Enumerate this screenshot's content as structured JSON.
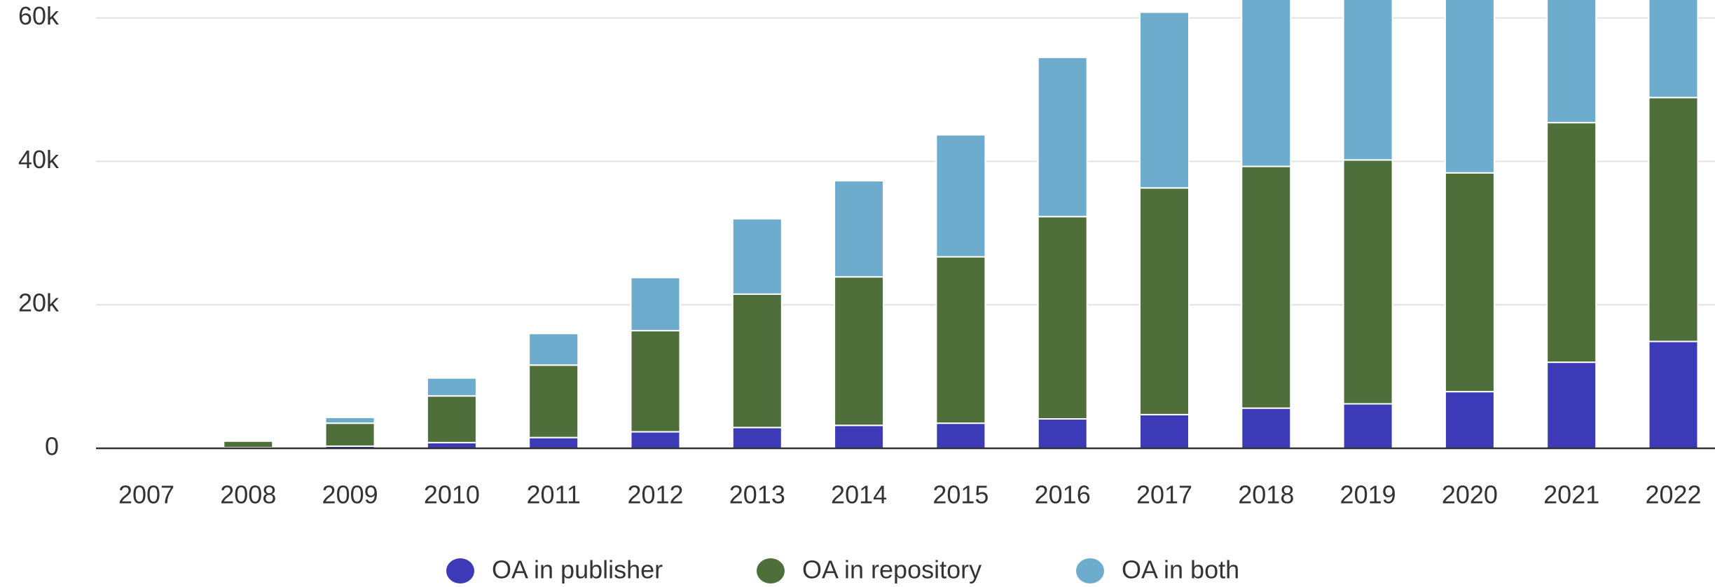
{
  "chart_data": {
    "type": "stacked_bar",
    "categories": [
      "2007",
      "2008",
      "2009",
      "2010",
      "2011",
      "2012",
      "2013",
      "2014",
      "2015",
      "2016",
      "2017",
      "2018",
      "2019",
      "2020",
      "2021",
      "2022"
    ],
    "series": [
      {
        "name": "OA in publisher",
        "color": "#3d3ab8",
        "values": [
          0,
          100,
          300,
          800,
          1500,
          2300,
          2900,
          3200,
          3500,
          4100,
          4700,
          5600,
          6200,
          7900,
          12000,
          14900
        ]
      },
      {
        "name": "OA in repository",
        "color": "#4e6e3a",
        "values": [
          0,
          900,
          3200,
          6500,
          10100,
          14100,
          18600,
          20700,
          23200,
          28200,
          31600,
          33700,
          34000,
          30500,
          33400,
          34000
        ]
      },
      {
        "name": "OA in both",
        "color": "#6eaccd",
        "values": [
          0,
          0,
          800,
          2500,
          4400,
          7400,
          10500,
          13400,
          17000,
          22200,
          24500,
          25700,
          25000,
          26000,
          19000,
          14000
        ]
      }
    ],
    "ylim": [
      0,
      62500
    ],
    "yticks": [
      0,
      {
        "value": 20000,
        "label": "20k"
      },
      {
        "value": 40000,
        "label": "40k"
      },
      {
        "value": 60000,
        "label": "60k"
      }
    ],
    "grid": true,
    "legend": "bottom"
  }
}
